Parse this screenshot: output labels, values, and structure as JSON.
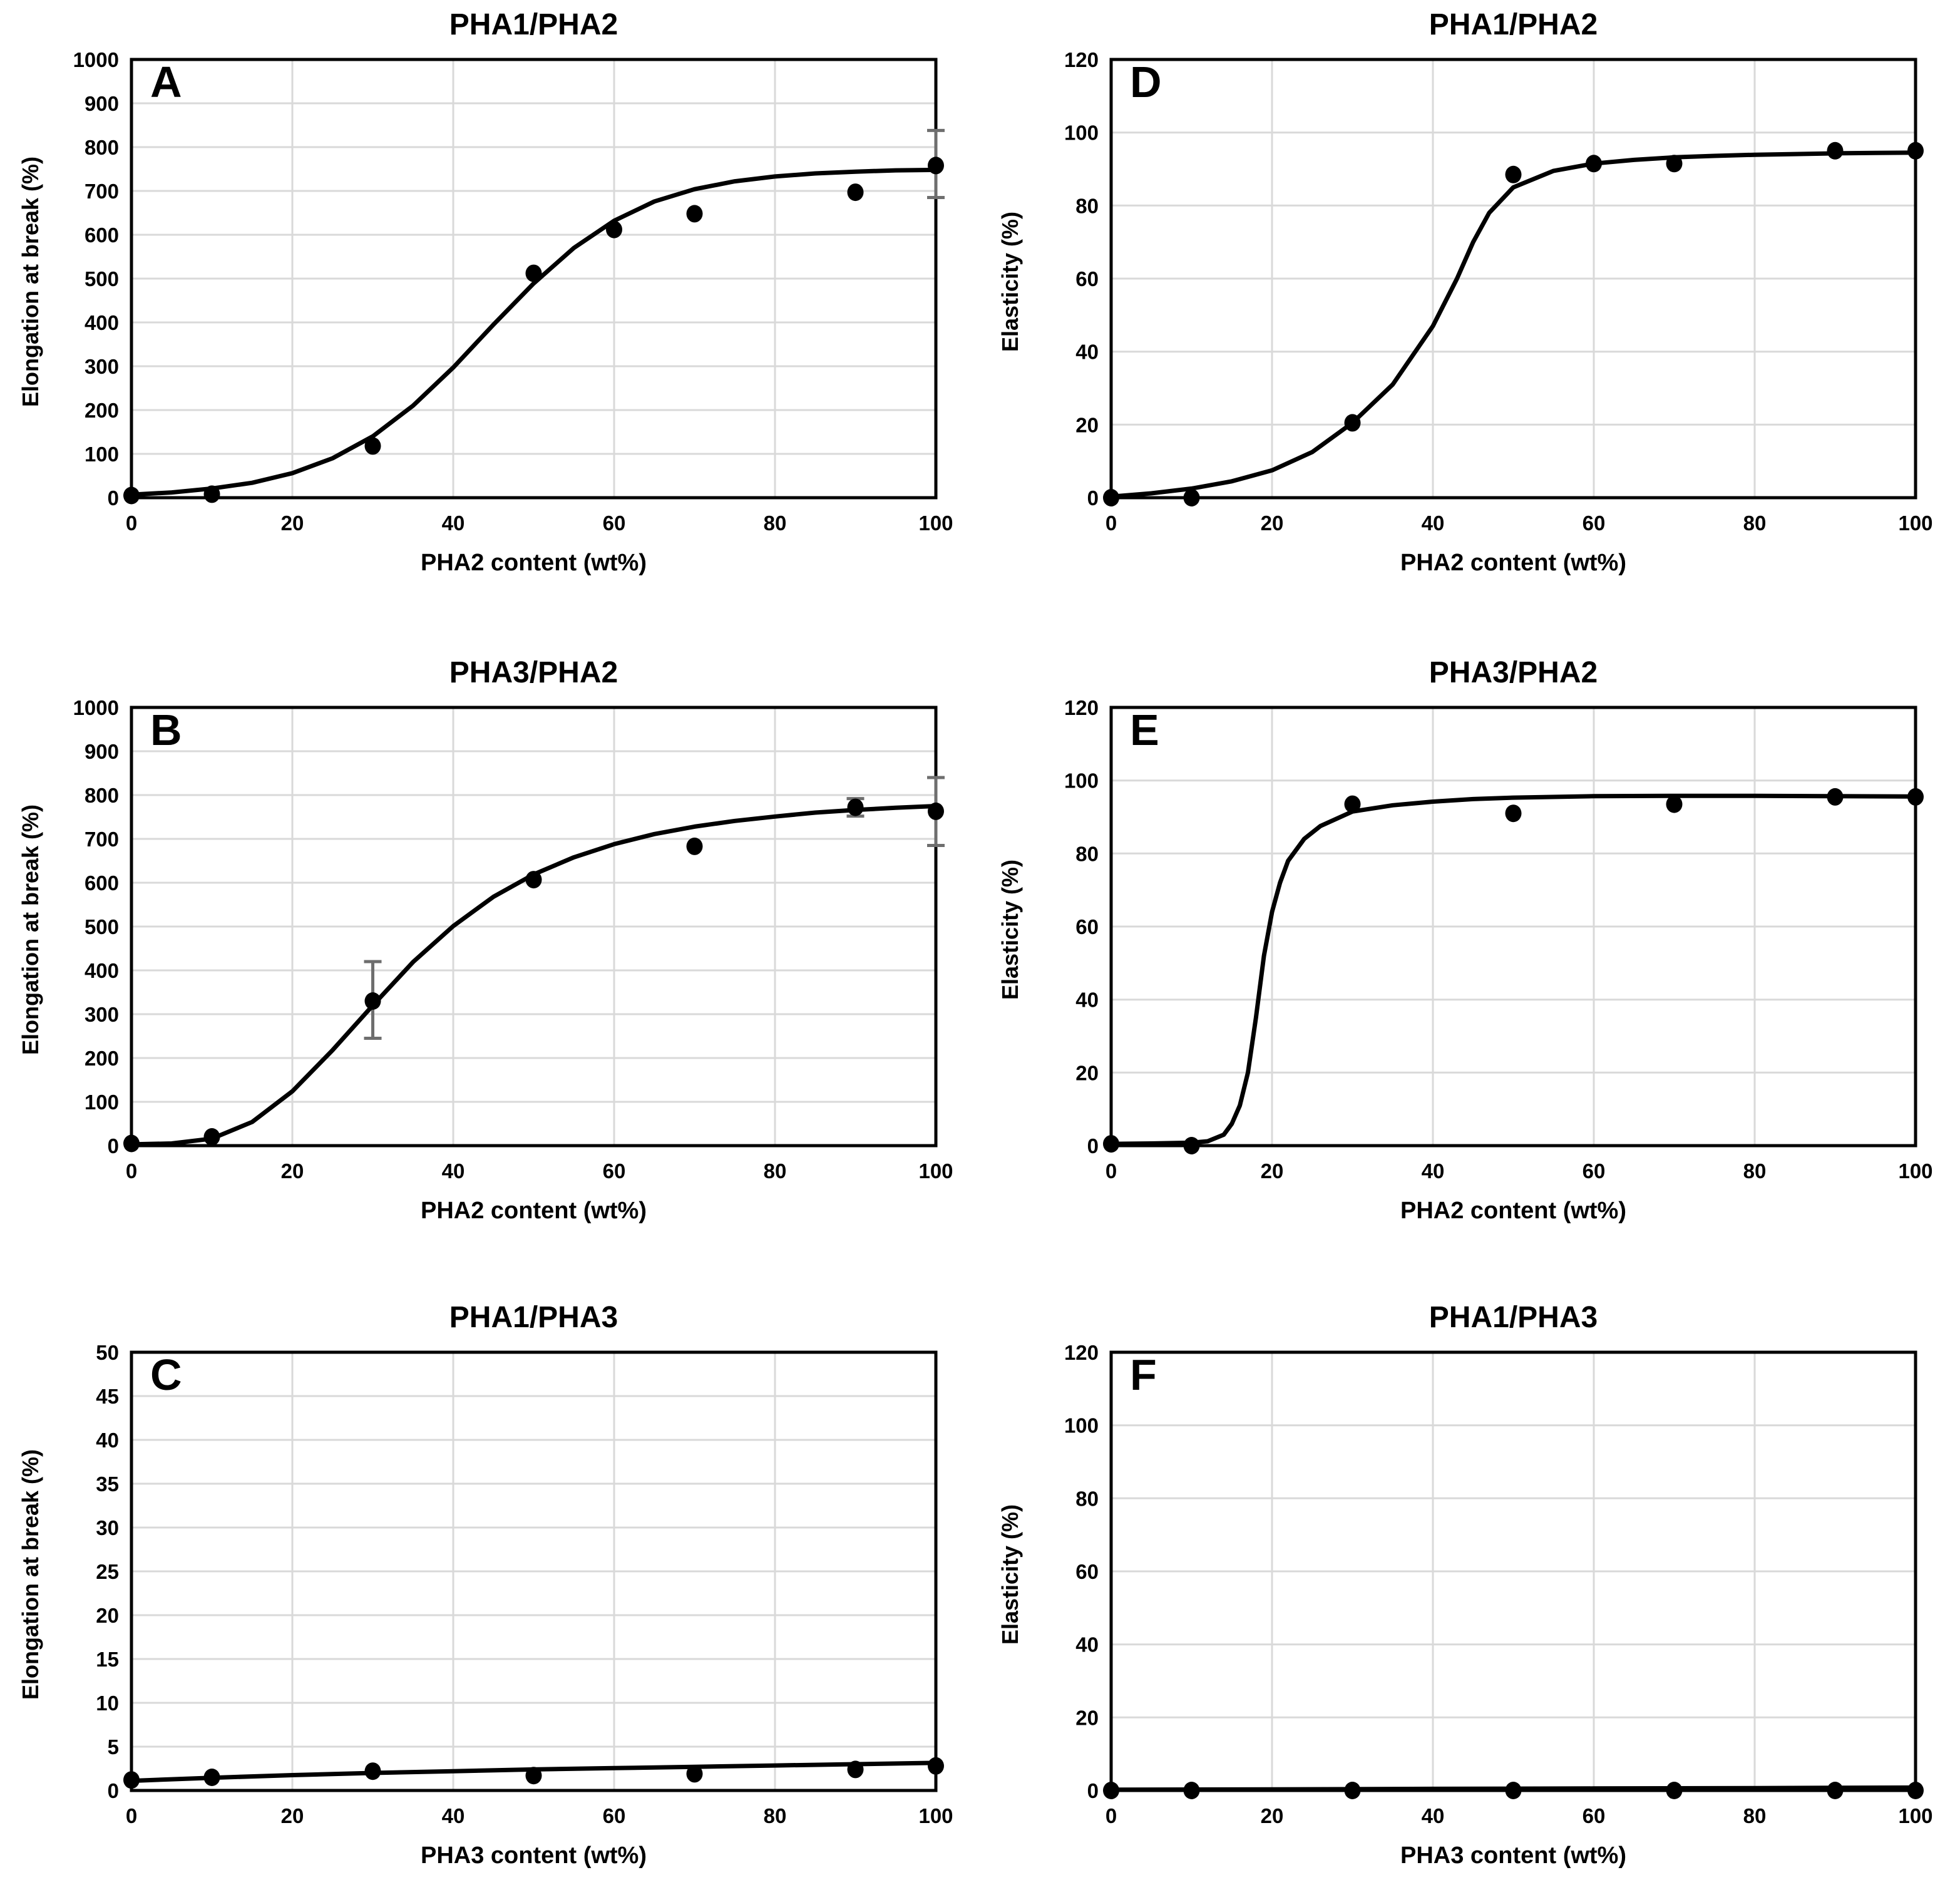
{
  "colors": {
    "ink": "#000000",
    "grid": "#d9d9d9",
    "error_bar": "#6e6e6e",
    "background": "#ffffff"
  },
  "chart_data": [
    {
      "type": "scatter",
      "panel_label": "A",
      "title": "PHA1/PHA2",
      "xlabel": "PHA2 content (wt%)",
      "ylabel": "Elongation at break (%)",
      "x_range": [
        0,
        100
      ],
      "y_range": [
        0,
        1000
      ],
      "xticks": [
        0,
        20,
        40,
        60,
        80,
        100
      ],
      "yticks": [
        0,
        100,
        200,
        300,
        400,
        500,
        600,
        700,
        800,
        900,
        1000
      ],
      "grid": true,
      "points": [
        [
          0,
          5
        ],
        [
          10,
          8
        ],
        [
          30,
          118
        ],
        [
          50,
          512
        ],
        [
          60,
          612
        ],
        [
          70,
          648
        ],
        [
          90,
          697
        ],
        [
          100,
          758
        ]
      ],
      "error_bars": [
        {
          "x": 100,
          "y": 758,
          "lo": 685,
          "hi": 838
        }
      ],
      "fit_curve": [
        [
          0,
          7
        ],
        [
          5,
          12
        ],
        [
          10,
          21
        ],
        [
          15,
          34
        ],
        [
          20,
          56
        ],
        [
          25,
          90
        ],
        [
          30,
          140
        ],
        [
          35,
          210
        ],
        [
          40,
          297
        ],
        [
          45,
          395
        ],
        [
          50,
          489
        ],
        [
          55,
          570
        ],
        [
          60,
          632
        ],
        [
          65,
          676
        ],
        [
          70,
          704
        ],
        [
          75,
          722
        ],
        [
          80,
          733
        ],
        [
          85,
          740
        ],
        [
          90,
          744
        ],
        [
          95,
          747
        ],
        [
          100,
          748
        ]
      ]
    },
    {
      "type": "scatter",
      "panel_label": "D",
      "title": "PHA1/PHA2",
      "xlabel": "PHA2 content (wt%)",
      "ylabel": "Elasticity (%)",
      "x_range": [
        0,
        100
      ],
      "y_range": [
        0,
        120
      ],
      "xticks": [
        0,
        20,
        40,
        60,
        80,
        100
      ],
      "yticks": [
        0,
        20,
        40,
        60,
        80,
        100,
        120
      ],
      "grid": true,
      "points": [
        [
          0,
          0
        ],
        [
          10,
          0
        ],
        [
          30,
          20.5
        ],
        [
          50,
          88.5
        ],
        [
          60,
          91.5
        ],
        [
          70,
          91.5
        ],
        [
          90,
          95
        ],
        [
          100,
          95
        ]
      ],
      "error_bars": [],
      "fit_curve": [
        [
          0,
          0.3
        ],
        [
          5,
          1.2
        ],
        [
          10,
          2.5
        ],
        [
          15,
          4.5
        ],
        [
          20,
          7.5
        ],
        [
          25,
          12.5
        ],
        [
          30,
          20.5
        ],
        [
          35,
          31
        ],
        [
          40,
          47
        ],
        [
          43,
          60
        ],
        [
          45,
          70
        ],
        [
          47,
          78
        ],
        [
          50,
          85
        ],
        [
          55,
          89.5
        ],
        [
          60,
          91.5
        ],
        [
          65,
          92.5
        ],
        [
          70,
          93.2
        ],
        [
          75,
          93.6
        ],
        [
          80,
          93.9
        ],
        [
          85,
          94.1
        ],
        [
          90,
          94.3
        ],
        [
          95,
          94.4
        ],
        [
          100,
          94.5
        ]
      ]
    },
    {
      "type": "scatter",
      "panel_label": "B",
      "title": "PHA3/PHA2",
      "xlabel": "PHA2 content (wt%)",
      "ylabel": "Elongation at break (%)",
      "x_range": [
        0,
        100
      ],
      "y_range": [
        0,
        1000
      ],
      "xticks": [
        0,
        20,
        40,
        60,
        80,
        100
      ],
      "yticks": [
        0,
        100,
        200,
        300,
        400,
        500,
        600,
        700,
        800,
        900,
        1000
      ],
      "grid": true,
      "points": [
        [
          0,
          5
        ],
        [
          10,
          20
        ],
        [
          30,
          330
        ],
        [
          50,
          607
        ],
        [
          70,
          683
        ],
        [
          90,
          772
        ],
        [
          100,
          763
        ]
      ],
      "error_bars": [
        {
          "x": 30,
          "y": 330,
          "lo": 245,
          "hi": 420
        },
        {
          "x": 90,
          "y": 772,
          "lo": 752,
          "hi": 792
        },
        {
          "x": 100,
          "y": 763,
          "lo": 685,
          "hi": 840
        }
      ],
      "fit_curve": [
        [
          0,
          3
        ],
        [
          5,
          5
        ],
        [
          10,
          16
        ],
        [
          15,
          54
        ],
        [
          20,
          124
        ],
        [
          25,
          218
        ],
        [
          30,
          320
        ],
        [
          35,
          419
        ],
        [
          40,
          501
        ],
        [
          45,
          568
        ],
        [
          50,
          619
        ],
        [
          55,
          658
        ],
        [
          60,
          688
        ],
        [
          65,
          711
        ],
        [
          70,
          728
        ],
        [
          75,
          741
        ],
        [
          80,
          751
        ],
        [
          85,
          760
        ],
        [
          90,
          766
        ],
        [
          95,
          771
        ],
        [
          100,
          775
        ]
      ]
    },
    {
      "type": "scatter",
      "panel_label": "E",
      "title": "PHA3/PHA2",
      "xlabel": "PHA2 content (wt%)",
      "ylabel": "Elasticity (%)",
      "x_range": [
        0,
        100
      ],
      "y_range": [
        0,
        120
      ],
      "xticks": [
        0,
        20,
        40,
        60,
        80,
        100
      ],
      "yticks": [
        0,
        20,
        40,
        60,
        80,
        100,
        120
      ],
      "grid": true,
      "points": [
        [
          0,
          0.5
        ],
        [
          10,
          0
        ],
        [
          30,
          93.5
        ],
        [
          50,
          91
        ],
        [
          70,
          93.5
        ],
        [
          90,
          95.5
        ],
        [
          100,
          95.5
        ]
      ],
      "error_bars": [],
      "fit_curve": [
        [
          0,
          0.5
        ],
        [
          5,
          0.6
        ],
        [
          10,
          0.8
        ],
        [
          12,
          1.2
        ],
        [
          14,
          3
        ],
        [
          15,
          6
        ],
        [
          16,
          11
        ],
        [
          17,
          20
        ],
        [
          18,
          35
        ],
        [
          19,
          52
        ],
        [
          20,
          64
        ],
        [
          21,
          72
        ],
        [
          22,
          78
        ],
        [
          24,
          84
        ],
        [
          26,
          87.5
        ],
        [
          28,
          89.5
        ],
        [
          30,
          91.5
        ],
        [
          35,
          93.2
        ],
        [
          40,
          94.2
        ],
        [
          45,
          94.9
        ],
        [
          50,
          95.3
        ],
        [
          60,
          95.7
        ],
        [
          70,
          95.8
        ],
        [
          80,
          95.8
        ],
        [
          90,
          95.7
        ],
        [
          100,
          95.6
        ]
      ]
    },
    {
      "type": "scatter",
      "panel_label": "C",
      "title": "PHA1/PHA3",
      "xlabel": "PHA3 content (wt%)",
      "ylabel": "Elongation at break (%)",
      "x_range": [
        0,
        100
      ],
      "y_range": [
        0,
        50
      ],
      "xticks": [
        0,
        20,
        40,
        60,
        80,
        100
      ],
      "yticks": [
        0,
        5,
        10,
        15,
        20,
        25,
        30,
        35,
        40,
        45,
        50
      ],
      "grid": true,
      "points": [
        [
          0,
          1.2
        ],
        [
          10,
          1.5
        ],
        [
          30,
          2.2
        ],
        [
          50,
          1.7
        ],
        [
          70,
          1.9
        ],
        [
          90,
          2.4
        ],
        [
          100,
          2.8
        ]
      ],
      "error_bars": [],
      "fit_curve": [
        [
          0,
          1.1
        ],
        [
          10,
          1.45
        ],
        [
          20,
          1.75
        ],
        [
          30,
          2.0
        ],
        [
          40,
          2.2
        ],
        [
          50,
          2.4
        ],
        [
          60,
          2.55
        ],
        [
          70,
          2.7
        ],
        [
          80,
          2.85
        ],
        [
          90,
          3.0
        ],
        [
          100,
          3.15
        ]
      ]
    },
    {
      "type": "scatter",
      "panel_label": "F",
      "title": "PHA1/PHA3",
      "xlabel": "PHA3 content (wt%)",
      "ylabel": "Elasticity (%)",
      "x_range": [
        0,
        100
      ],
      "y_range": [
        0,
        120
      ],
      "xticks": [
        0,
        20,
        40,
        60,
        80,
        100
      ],
      "yticks": [
        0,
        20,
        40,
        60,
        80,
        100,
        120
      ],
      "grid": true,
      "points": [
        [
          0,
          0
        ],
        [
          10,
          0
        ],
        [
          30,
          0
        ],
        [
          50,
          0
        ],
        [
          70,
          0
        ],
        [
          90,
          0
        ],
        [
          100,
          0
        ]
      ],
      "error_bars": [],
      "fit_curve": [
        [
          0,
          0.2
        ],
        [
          20,
          0.3
        ],
        [
          40,
          0.45
        ],
        [
          60,
          0.55
        ],
        [
          80,
          0.65
        ],
        [
          100,
          0.8
        ]
      ]
    }
  ]
}
